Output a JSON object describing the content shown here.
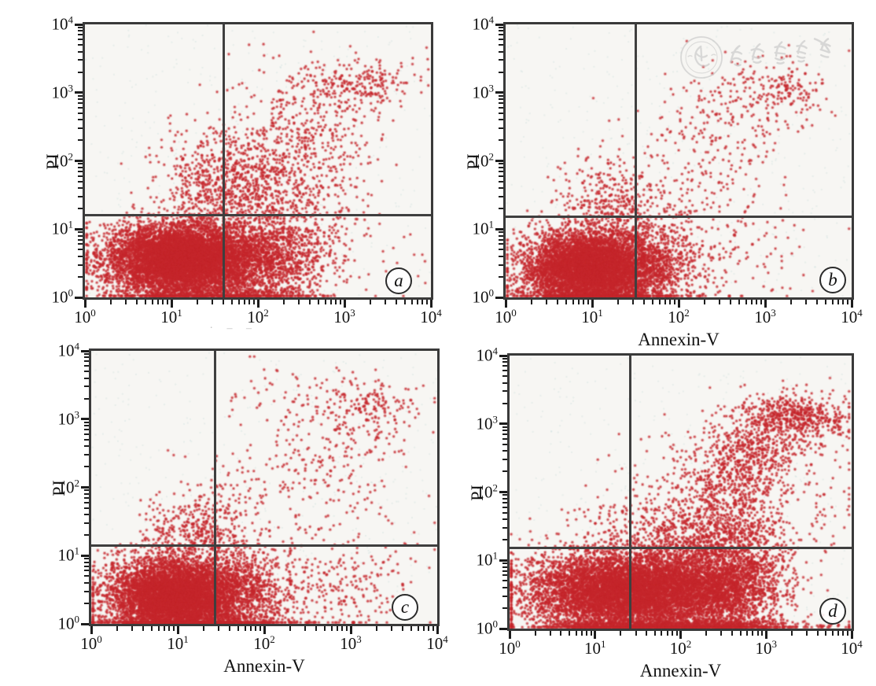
{
  "figure": {
    "background": "#ffffff",
    "dot_color": "#c5262c",
    "frame_color": "#3a3a3a",
    "erased_label_remnant": "·   – –",
    "watermark": {
      "text": "中华医学会",
      "description": "Chinese Medical Association seal watermark",
      "color": "#c3c3c3",
      "panel": "b"
    }
  },
  "cluster_format": [
    "count",
    "log10_center_x",
    "log10_center_y",
    "log10_sigma_x",
    "log10_sigma_y"
  ],
  "chart_data": [
    {
      "type": "scatter",
      "panel": "a",
      "xlabel": "",
      "ylabel": "PI",
      "xscale": "log",
      "yscale": "log",
      "xlim": [
        1,
        10000
      ],
      "ylim": [
        1,
        10000
      ],
      "x_tick_exponents": [
        0,
        1,
        2,
        3,
        4
      ],
      "y_tick_exponents": [
        0,
        1,
        2,
        3,
        4
      ],
      "quadrant_gate": {
        "x": 40,
        "y": 16
      },
      "clusters": [
        [
          6500,
          1.05,
          0.55,
          0.4,
          0.26
        ],
        [
          2200,
          1.75,
          0.55,
          0.45,
          0.3
        ],
        [
          500,
          2.35,
          0.75,
          0.35,
          0.45
        ],
        [
          900,
          2.0,
          1.75,
          0.55,
          0.45
        ],
        [
          260,
          1.45,
          1.6,
          0.3,
          0.35
        ],
        [
          220,
          2.55,
          2.55,
          0.4,
          0.4
        ],
        [
          150,
          3.15,
          3.1,
          0.28,
          0.18
        ],
        [
          70,
          2.6,
          3.25,
          0.5,
          0.25
        ],
        [
          45,
          3.5,
          3.2,
          0.3,
          0.15
        ],
        [
          25,
          3.4,
          0.8,
          0.35,
          0.5
        ],
        [
          420,
          1.5,
          0.05,
          0.6,
          0.05
        ]
      ]
    },
    {
      "type": "scatter",
      "panel": "b",
      "xlabel": "Annexin-V",
      "ylabel": "PI",
      "xscale": "log",
      "yscale": "log",
      "xlim": [
        1,
        10000
      ],
      "ylim": [
        1,
        10000
      ],
      "x_tick_exponents": [
        0,
        1,
        2,
        3,
        4
      ],
      "y_tick_exponents": [
        0,
        1,
        2,
        3,
        4
      ],
      "quadrant_gate": {
        "x": 32,
        "y": 15
      },
      "clusters": [
        [
          6000,
          0.95,
          0.42,
          0.36,
          0.27
        ],
        [
          900,
          1.55,
          0.45,
          0.3,
          0.3
        ],
        [
          420,
          1.25,
          1.35,
          0.33,
          0.33
        ],
        [
          200,
          1.85,
          0.6,
          0.3,
          0.35
        ],
        [
          160,
          2.3,
          2.3,
          0.45,
          0.45
        ],
        [
          150,
          2.9,
          2.9,
          0.4,
          0.35
        ],
        [
          90,
          3.25,
          3.1,
          0.22,
          0.15
        ],
        [
          130,
          2.6,
          0.55,
          0.5,
          0.4
        ],
        [
          60,
          2.3,
          1.5,
          0.4,
          0.25
        ],
        [
          250,
          1.1,
          0.05,
          0.5,
          0.05
        ]
      ]
    },
    {
      "type": "scatter",
      "panel": "c",
      "xlabel": "Annexin-V",
      "ylabel": "PI",
      "xscale": "log",
      "yscale": "log",
      "xlim": [
        1,
        10000
      ],
      "ylim": [
        1,
        10000
      ],
      "x_tick_exponents": [
        0,
        1,
        2,
        3,
        4
      ],
      "y_tick_exponents": [
        0,
        1,
        2,
        3,
        4
      ],
      "quadrant_gate": {
        "x": 27,
        "y": 14
      },
      "clusters": [
        [
          6200,
          0.95,
          0.4,
          0.37,
          0.28
        ],
        [
          1100,
          1.6,
          0.5,
          0.32,
          0.32
        ],
        [
          420,
          1.2,
          1.3,
          0.3,
          0.28
        ],
        [
          300,
          2.3,
          0.5,
          0.5,
          0.38
        ],
        [
          120,
          3.1,
          0.6,
          0.3,
          0.4
        ],
        [
          230,
          2.7,
          2.4,
          0.5,
          0.5
        ],
        [
          170,
          3.25,
          3.15,
          0.3,
          0.2
        ],
        [
          60,
          2.3,
          3.3,
          0.4,
          0.25
        ],
        [
          80,
          1.6,
          1.8,
          0.3,
          0.4
        ],
        [
          350,
          1.2,
          0.05,
          0.55,
          0.05
        ]
      ]
    },
    {
      "type": "scatter",
      "panel": "d",
      "xlabel": "Annexin-V",
      "ylabel": "PI",
      "xscale": "log",
      "yscale": "log",
      "xlim": [
        1,
        10000
      ],
      "ylim": [
        1,
        10000
      ],
      "x_tick_exponents": [
        0,
        1,
        2,
        3,
        4
      ],
      "y_tick_exponents": [
        0,
        1,
        2,
        3,
        4
      ],
      "quadrant_gate": {
        "x": 26,
        "y": 15
      },
      "clusters": [
        [
          7000,
          1.3,
          0.55,
          0.55,
          0.28
        ],
        [
          2500,
          2.3,
          0.6,
          0.4,
          0.32
        ],
        [
          700,
          2.75,
          0.8,
          0.25,
          0.45
        ],
        [
          500,
          2.2,
          1.35,
          0.5,
          0.2
        ],
        [
          350,
          2.45,
          1.8,
          0.35,
          0.3
        ],
        [
          400,
          2.7,
          2.3,
          0.3,
          0.35
        ],
        [
          300,
          2.9,
          2.7,
          0.3,
          0.3
        ],
        [
          550,
          3.35,
          3.1,
          0.3,
          0.17
        ],
        [
          120,
          2.0,
          2.2,
          0.4,
          0.4
        ],
        [
          80,
          1.2,
          1.5,
          0.35,
          0.25
        ],
        [
          60,
          3.7,
          2.0,
          0.2,
          0.6
        ],
        [
          1200,
          1.9,
          0.04,
          0.75,
          0.05
        ]
      ]
    }
  ]
}
